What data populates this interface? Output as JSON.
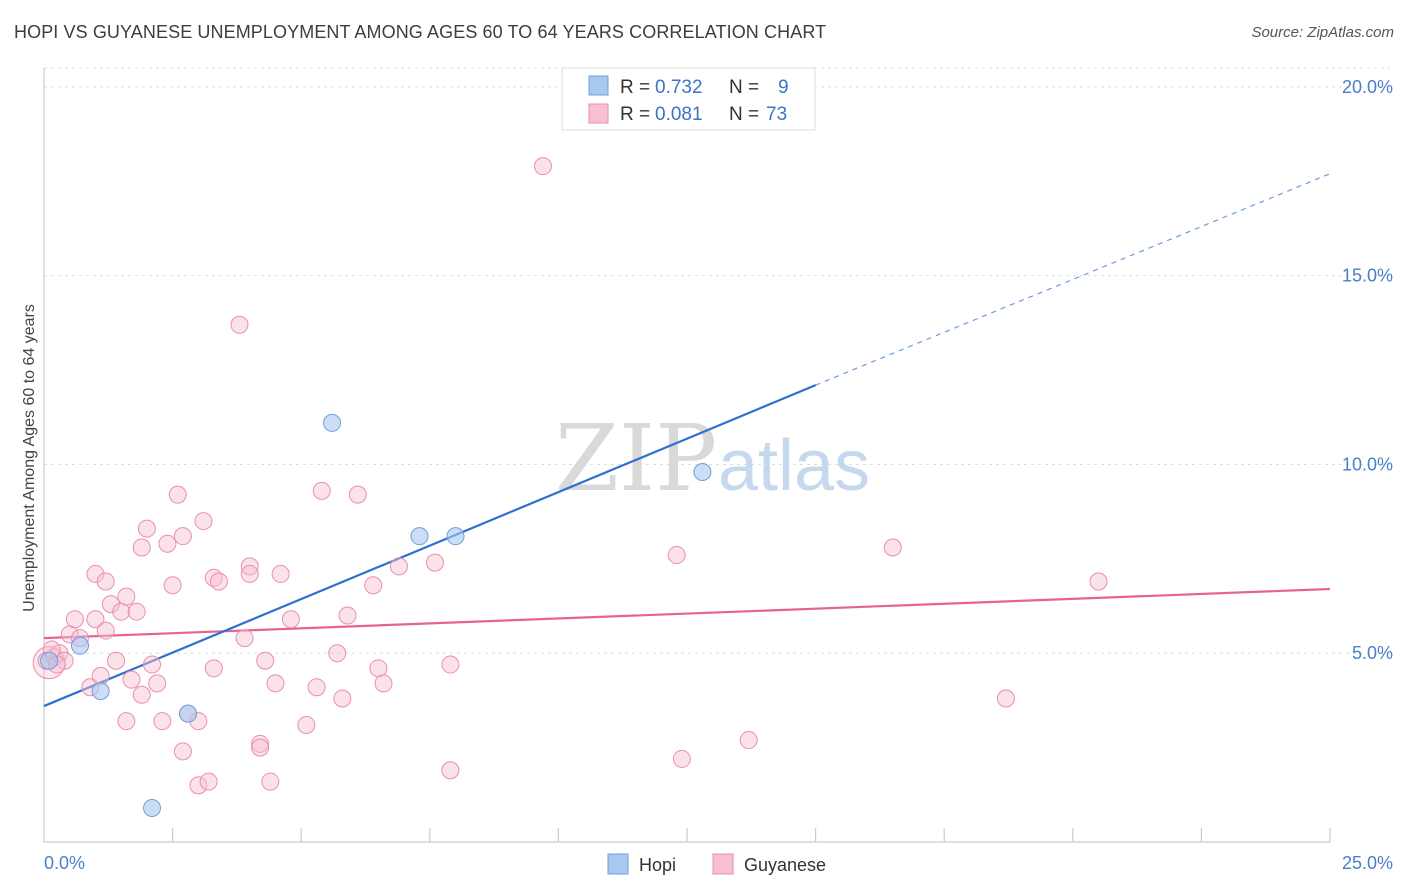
{
  "title": "HOPI VS GUYANESE UNEMPLOYMENT AMONG AGES 60 TO 64 YEARS CORRELATION CHART",
  "source": "Source: ZipAtlas.com",
  "watermark": {
    "zip": "ZIP",
    "atlas": "atlas"
  },
  "colors": {
    "hopi": "#a9c8ee",
    "hopi_stroke": "#6d9fd9",
    "hopi_line": "#2f6fd0",
    "guyanese": "#f7bfd0",
    "guyanese_stroke": "#e98fae",
    "guyanese_line": "#e4648f",
    "grid": "#dddddd",
    "tick_text": "#4a7fc9"
  },
  "legend": {
    "rows": [
      {
        "r_label": "R =",
        "r_value": "0.732",
        "n_label": "N =",
        "n_value": "9"
      },
      {
        "r_label": "R =",
        "r_value": "0.081",
        "n_label": "N =",
        "n_value": "73"
      }
    ]
  },
  "chart_data": {
    "type": "scatter",
    "title": "HOPI VS GUYANESE UNEMPLOYMENT AMONG AGES 60 TO 64 YEARS CORRELATION CHART",
    "xlabel": "",
    "ylabel": "Unemployment Among Ages 60 to 64 years",
    "xlim": [
      0,
      25
    ],
    "ylim": [
      0,
      20.5
    ],
    "x_ticks": [
      {
        "value": 0,
        "label": "0.0%"
      },
      {
        "value": 25,
        "label": "25.0%"
      }
    ],
    "y_ticks": [
      {
        "value": 5,
        "label": "5.0%"
      },
      {
        "value": 10,
        "label": "10.0%"
      },
      {
        "value": 15,
        "label": "15.0%"
      },
      {
        "value": 20,
        "label": "20.0%"
      }
    ],
    "grid": true,
    "legend_position": "top-center",
    "series": [
      {
        "name": "Hopi",
        "r": 0.732,
        "n": 9,
        "trend": {
          "x0": 0,
          "y0": 3.6,
          "x1": 15,
          "y1": 12.1,
          "dashed_to_x": 25,
          "dashed_to_y": 17.7
        },
        "points": [
          [
            0.1,
            4.8
          ],
          [
            0.7,
            5.2
          ],
          [
            1.1,
            4.0
          ],
          [
            2.1,
            0.9
          ],
          [
            2.8,
            3.4
          ],
          [
            5.6,
            11.1
          ],
          [
            7.3,
            8.1
          ],
          [
            8.0,
            8.1
          ],
          [
            12.8,
            9.8
          ]
        ]
      },
      {
        "name": "Guyanese",
        "r": 0.081,
        "n": 73,
        "trend": {
          "x0": 0,
          "y0": 5.4,
          "x1": 25,
          "y1": 6.7
        },
        "points": [
          [
            0.05,
            4.8
          ],
          [
            0.2,
            4.9
          ],
          [
            0.3,
            5.0
          ],
          [
            0.4,
            4.8
          ],
          [
            0.5,
            5.5
          ],
          [
            0.6,
            5.9
          ],
          [
            0.7,
            5.4
          ],
          [
            0.9,
            4.1
          ],
          [
            1.0,
            5.9
          ],
          [
            1.0,
            7.1
          ],
          [
            1.1,
            4.4
          ],
          [
            1.2,
            5.6
          ],
          [
            1.2,
            6.9
          ],
          [
            1.4,
            4.8
          ],
          [
            1.3,
            6.3
          ],
          [
            1.5,
            6.1
          ],
          [
            1.6,
            6.5
          ],
          [
            1.6,
            3.2
          ],
          [
            1.7,
            4.3
          ],
          [
            1.8,
            6.1
          ],
          [
            1.9,
            3.9
          ],
          [
            1.9,
            7.8
          ],
          [
            2.0,
            8.3
          ],
          [
            2.1,
            4.7
          ],
          [
            2.2,
            4.2
          ],
          [
            2.3,
            3.2
          ],
          [
            2.4,
            7.9
          ],
          [
            2.5,
            6.8
          ],
          [
            2.6,
            9.2
          ],
          [
            2.7,
            8.1
          ],
          [
            2.7,
            2.4
          ],
          [
            2.8,
            3.4
          ],
          [
            3.0,
            3.2
          ],
          [
            3.0,
            1.5
          ],
          [
            3.1,
            8.5
          ],
          [
            3.2,
            1.6
          ],
          [
            3.3,
            7.0
          ],
          [
            3.3,
            4.6
          ],
          [
            3.4,
            6.9
          ],
          [
            3.8,
            13.7
          ],
          [
            3.9,
            5.4
          ],
          [
            4.0,
            7.3
          ],
          [
            4.0,
            7.1
          ],
          [
            4.2,
            2.6
          ],
          [
            4.2,
            2.5
          ],
          [
            4.3,
            4.8
          ],
          [
            4.4,
            1.6
          ],
          [
            4.5,
            4.2
          ],
          [
            4.6,
            7.1
          ],
          [
            4.8,
            5.9
          ],
          [
            5.1,
            3.1
          ],
          [
            5.3,
            4.1
          ],
          [
            5.4,
            9.3
          ],
          [
            5.7,
            5.0
          ],
          [
            5.8,
            3.8
          ],
          [
            5.9,
            6.0
          ],
          [
            6.1,
            9.2
          ],
          [
            6.4,
            6.8
          ],
          [
            6.5,
            4.6
          ],
          [
            6.6,
            4.2
          ],
          [
            6.9,
            7.3
          ],
          [
            7.6,
            7.4
          ],
          [
            7.9,
            4.7
          ],
          [
            7.9,
            1.9
          ],
          [
            9.7,
            17.9
          ],
          [
            12.3,
            7.6
          ],
          [
            12.4,
            2.2
          ],
          [
            13.7,
            2.7
          ],
          [
            16.5,
            7.8
          ],
          [
            18.7,
            3.8
          ],
          [
            20.5,
            6.9
          ],
          [
            0.15,
            5.1
          ],
          [
            0.25,
            4.7
          ]
        ]
      }
    ]
  },
  "bottom_legend": {
    "hopi": "Hopi",
    "guyanese": "Guyanese"
  }
}
